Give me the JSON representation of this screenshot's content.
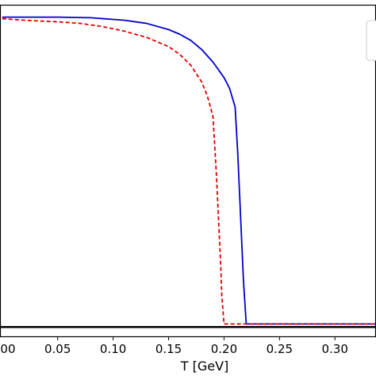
{
  "chart_data": {
    "type": "line",
    "title": "",
    "xlabel": "T [GeV]",
    "ylabel": "",
    "xlim": [
      -0.002,
      0.337
    ],
    "ylim": [
      -0.03,
      1.04
    ],
    "x_ticks": [
      0.05,
      0.1,
      0.15,
      0.2,
      0.25,
      0.3
    ],
    "x_tick_labels": [
      "0.05",
      "0.10",
      "0.15",
      "0.20",
      "0.25",
      "0.30"
    ],
    "grid": false,
    "legend": "top-right (partially visible, entries cropped)",
    "reference_line": {
      "y": 0.0,
      "color": "#000000"
    },
    "series": [
      {
        "color": "#0000cc",
        "style": "solid",
        "x": [
          0.0,
          0.02,
          0.05,
          0.08,
          0.11,
          0.13,
          0.15,
          0.16,
          0.17,
          0.18,
          0.19,
          0.2,
          0.205,
          0.21,
          0.2125,
          0.215,
          0.2175,
          0.22,
          0.25,
          0.3,
          0.337
        ],
        "y": [
          1.0,
          1.0,
          1.0,
          0.998,
          0.99,
          0.98,
          0.96,
          0.945,
          0.925,
          0.895,
          0.855,
          0.805,
          0.77,
          0.71,
          0.55,
          0.35,
          0.15,
          0.01,
          0.01,
          0.01,
          0.01
        ]
      },
      {
        "color": "#e00000",
        "style": "dashed",
        "x": [
          0.0,
          0.02,
          0.05,
          0.07,
          0.09,
          0.11,
          0.13,
          0.15,
          0.16,
          0.17,
          0.18,
          0.185,
          0.19,
          0.193,
          0.195,
          0.197,
          0.198,
          0.2,
          0.25,
          0.3,
          0.337
        ],
        "y": [
          0.995,
          0.99,
          0.985,
          0.98,
          0.97,
          0.955,
          0.935,
          0.905,
          0.88,
          0.845,
          0.79,
          0.745,
          0.68,
          0.5,
          0.35,
          0.2,
          0.1,
          0.01,
          0.01,
          0.01,
          0.01
        ]
      }
    ]
  }
}
